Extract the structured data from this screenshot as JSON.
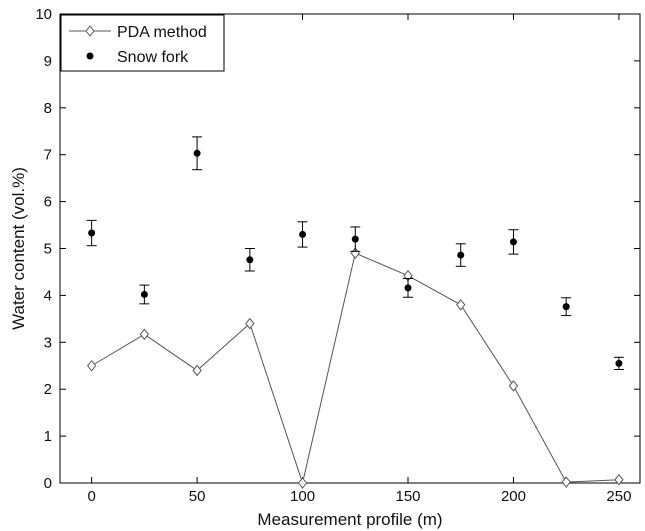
{
  "chart_data": {
    "type": "line",
    "xlabel": "Measurement profile (m)",
    "ylabel": "Water content (vol.%)",
    "xlim": [
      -15,
      260
    ],
    "ylim": [
      0,
      10
    ],
    "xticks": [
      0,
      50,
      100,
      150,
      200,
      250
    ],
    "yticks": [
      0,
      1,
      2,
      3,
      4,
      5,
      6,
      7,
      8,
      9,
      10
    ],
    "legend_position": "top-left",
    "grid": false,
    "series": [
      {
        "name": "PDA method",
        "kind": "line-with-open-diamond-markers",
        "color": "#555555",
        "x": [
          0,
          25,
          50,
          75,
          100,
          125,
          150,
          175,
          200,
          225,
          250
        ],
        "y": [
          2.5,
          3.17,
          2.4,
          3.4,
          0.0,
          4.9,
          4.42,
          3.8,
          2.07,
          0.02,
          0.07
        ]
      },
      {
        "name": "Snow fork",
        "kind": "dots-with-error-bars",
        "color": "#000000",
        "x": [
          0,
          25,
          50,
          75,
          100,
          125,
          150,
          175,
          200,
          225,
          250
        ],
        "y": [
          5.33,
          4.02,
          7.03,
          4.76,
          5.3,
          5.2,
          4.16,
          4.86,
          5.14,
          3.76,
          2.55
        ],
        "err": [
          0.27,
          0.2,
          0.35,
          0.24,
          0.27,
          0.26,
          0.2,
          0.24,
          0.26,
          0.19,
          0.13
        ]
      }
    ]
  }
}
